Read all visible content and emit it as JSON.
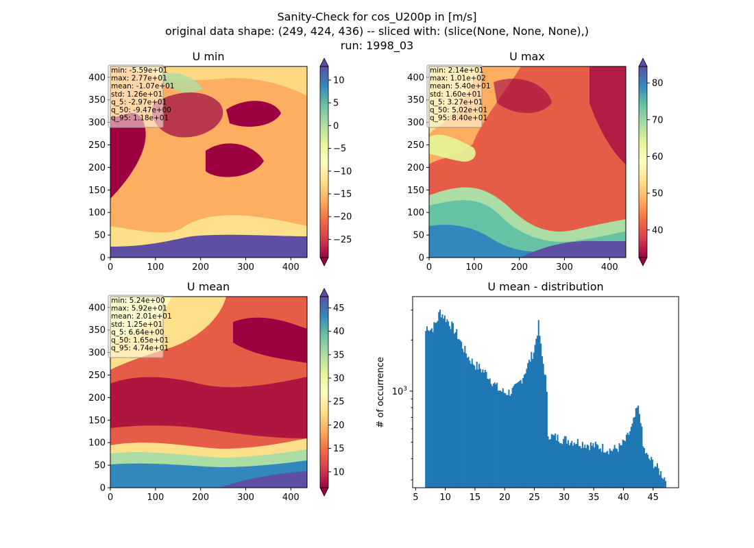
{
  "figure": {
    "title_lines": [
      "Sanity-Check for cos_U200p in [m/s]",
      "original data shape: (249, 424, 436) -- sliced with: (slice(None, None, None),)",
      "run: 1998_03"
    ]
  },
  "chart_data": [
    {
      "type": "heatmap",
      "title": "U min",
      "colormap": "Spectral",
      "xlim": [
        0,
        436
      ],
      "ylim": [
        0,
        424
      ],
      "xticks": [
        0,
        100,
        200,
        300,
        400
      ],
      "yticks": [
        0,
        50,
        100,
        150,
        200,
        250,
        300,
        350,
        400
      ],
      "colorbar": {
        "min": -29,
        "max": 13,
        "ticks": [
          -25,
          -20,
          -15,
          -10,
          -5,
          0,
          5,
          10
        ],
        "extend": "both"
      },
      "stats": [
        "min: -5.59e+01",
        "max: 2.77e+01",
        "mean: -1.07e+01",
        "std: 1.26e+01",
        "q_5: -2.97e+01",
        "q_50: -9.47e+00",
        "q_95: 1.18e+01"
      ]
    },
    {
      "type": "heatmap",
      "title": "U max",
      "colormap": "Spectral",
      "xlim": [
        0,
        436
      ],
      "ylim": [
        0,
        424
      ],
      "xticks": [
        0,
        100,
        200,
        300,
        400
      ],
      "yticks": [
        0,
        50,
        100,
        150,
        200,
        250,
        300,
        350,
        400
      ],
      "colorbar": {
        "min": 32.5,
        "max": 84.5,
        "ticks": [
          40,
          50,
          60,
          70,
          80
        ],
        "extend": "both"
      },
      "stats": [
        "min: 2.14e+01",
        "max: 1.01e+02",
        "mean: 5.40e+01",
        "std: 1.60e+01",
        "q_5: 3.27e+01",
        "q_50: 5.02e+01",
        "q_95: 8.40e+01"
      ]
    },
    {
      "type": "heatmap",
      "title": "U mean",
      "colormap": "Spectral",
      "xlim": [
        0,
        436
      ],
      "ylim": [
        0,
        424
      ],
      "xticks": [
        0,
        100,
        200,
        300,
        400
      ],
      "yticks": [
        0,
        50,
        100,
        150,
        200,
        250,
        300,
        350,
        400
      ],
      "colorbar": {
        "min": 6.6,
        "max": 47.4,
        "ticks": [
          10,
          15,
          20,
          25,
          30,
          35,
          40,
          45
        ],
        "extend": "both"
      },
      "stats": [
        "min: 5.24e+00",
        "max: 5.92e+01",
        "mean: 2.01e+01",
        "std: 1.25e+01",
        "q_5: 6.64e+00",
        "q_50: 1.65e+01",
        "q_95: 4.74e+01"
      ]
    },
    {
      "type": "bar",
      "title": "U mean - distribution",
      "ylabel": "# of occurrence",
      "yscale": "log",
      "ylim": [
        270,
        3600
      ],
      "xlim": [
        4.5,
        49.3
      ],
      "xticks": [
        5,
        10,
        15,
        20,
        25,
        30,
        35,
        40,
        45
      ],
      "yticks_major": [
        1000
      ],
      "ytick_labels": [
        "10^3"
      ],
      "color": "#1f77b4",
      "histogram": {
        "bin_width": 0.2,
        "profile": [
          [
            6.6,
            2200
          ],
          [
            7.0,
            2450
          ],
          [
            7.4,
            2300
          ],
          [
            8.0,
            2380
          ],
          [
            8.6,
            2600
          ],
          [
            9.1,
            2950
          ],
          [
            9.6,
            2800
          ],
          [
            10.2,
            2650
          ],
          [
            11.0,
            2450
          ],
          [
            12.0,
            2150
          ],
          [
            13.0,
            1800
          ],
          [
            14.0,
            1560
          ],
          [
            15.0,
            1430
          ],
          [
            16.0,
            1350
          ],
          [
            17.0,
            1260
          ],
          [
            18.0,
            1130
          ],
          [
            19.0,
            1020
          ],
          [
            20.0,
            980
          ],
          [
            21.0,
            990
          ],
          [
            22.0,
            1050
          ],
          [
            23.0,
            1200
          ],
          [
            24.0,
            1450
          ],
          [
            25.0,
            1750
          ],
          [
            25.7,
            2450
          ],
          [
            26.2,
            1650
          ],
          [
            27.0,
            1130
          ],
          [
            27.3,
            560
          ],
          [
            28.0,
            540
          ],
          [
            30.0,
            520
          ],
          [
            32.0,
            505
          ],
          [
            34.0,
            485
          ],
          [
            36.0,
            470
          ],
          [
            38.0,
            450
          ],
          [
            39.5,
            470
          ],
          [
            40.5,
            520
          ],
          [
            41.5,
            620
          ],
          [
            42.0,
            720
          ],
          [
            42.4,
            810
          ],
          [
            42.9,
            690
          ],
          [
            43.3,
            470
          ],
          [
            44.0,
            410
          ],
          [
            45.0,
            380
          ],
          [
            46.0,
            340
          ],
          [
            46.6,
            320
          ],
          [
            47.2,
            300
          ]
        ]
      }
    }
  ]
}
